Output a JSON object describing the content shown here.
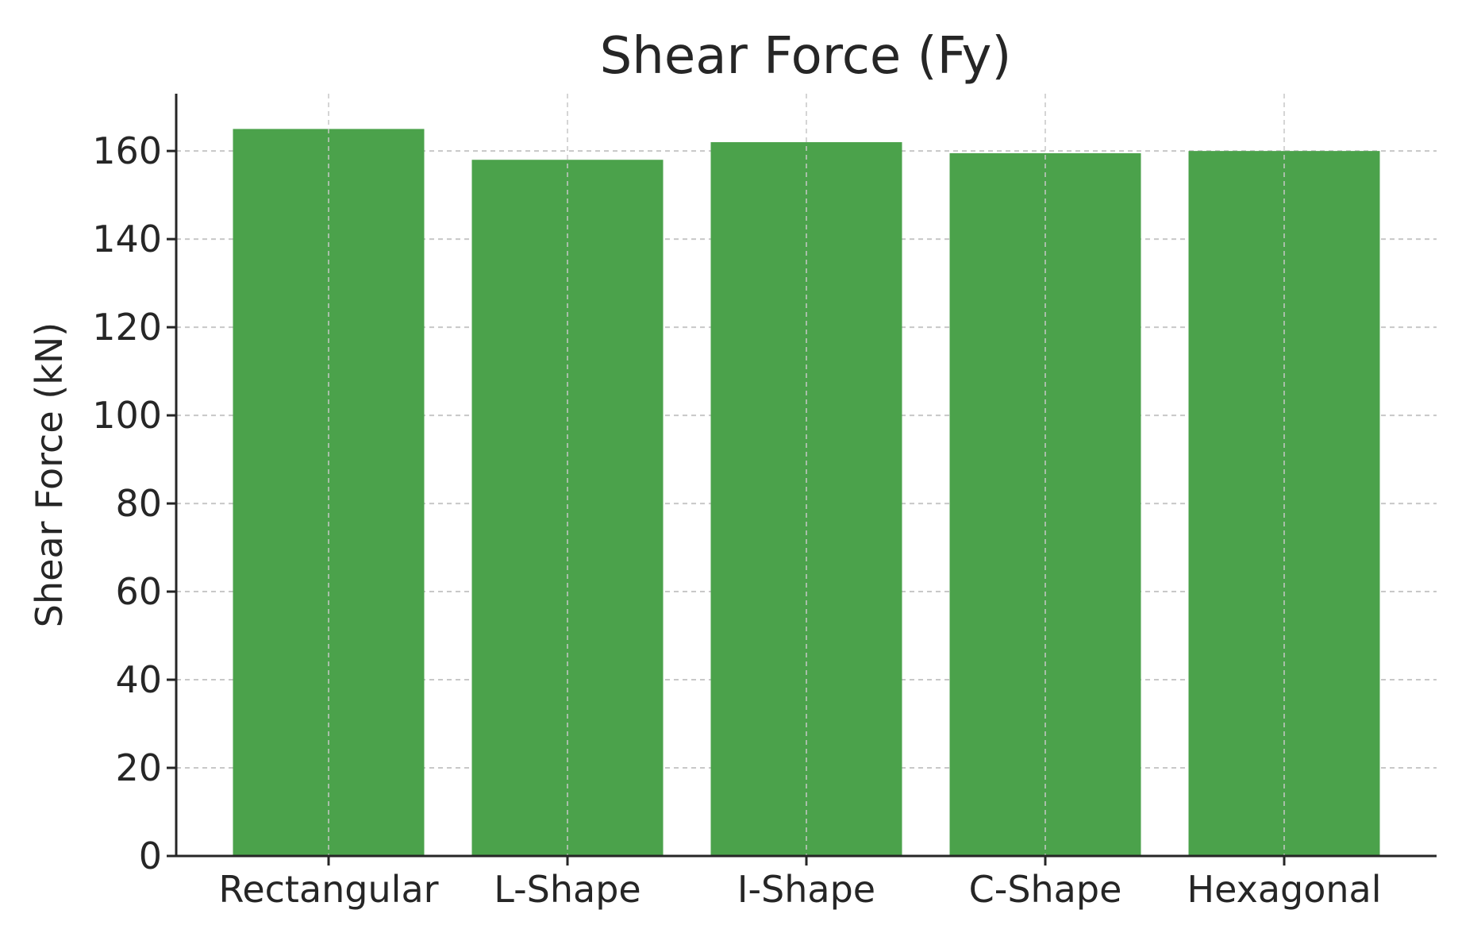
{
  "chart_data": {
    "type": "bar",
    "title": "Shear Force (Fy)",
    "xlabel": "",
    "ylabel": "Shear Force (kN)",
    "categories": [
      "Rectangular",
      "L-Shape",
      "I-Shape",
      "C-Shape",
      "Hexagonal"
    ],
    "values": [
      165,
      158,
      162,
      159.5,
      160
    ],
    "ylim": [
      0,
      173
    ],
    "yticks": [
      0,
      20,
      40,
      60,
      80,
      100,
      120,
      140,
      160
    ],
    "grid": true,
    "bar_color": "#4ba24b",
    "axis_color": "#262626",
    "grid_color": "#c8c8c8"
  }
}
